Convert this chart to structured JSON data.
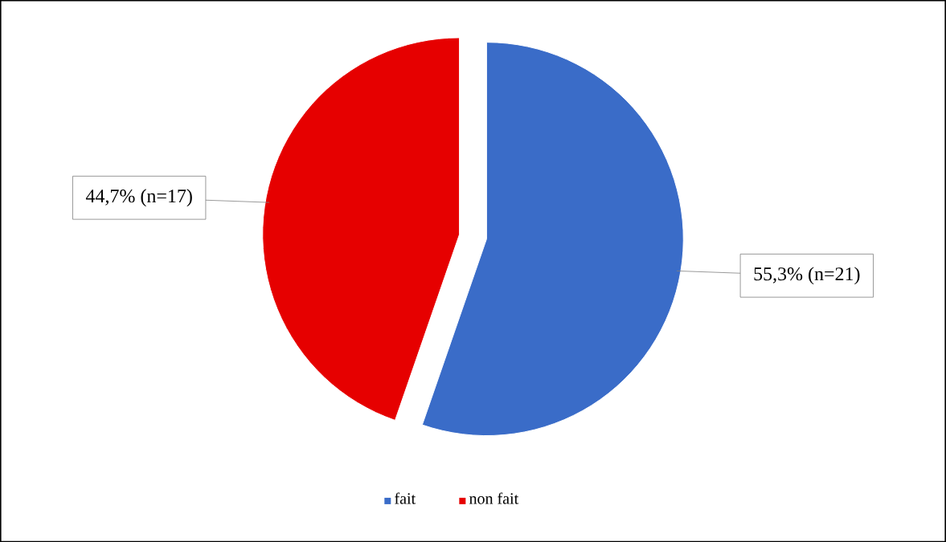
{
  "chart_data": {
    "type": "pie",
    "categories": [
      "fait",
      "non fait"
    ],
    "values": [
      55.3,
      44.7
    ],
    "colors": [
      "#3a6cc8",
      "#e60000"
    ],
    "value_labels": [
      "55,3% (n=21)",
      "44,7% (n=17)"
    ],
    "legend": "bottom"
  }
}
